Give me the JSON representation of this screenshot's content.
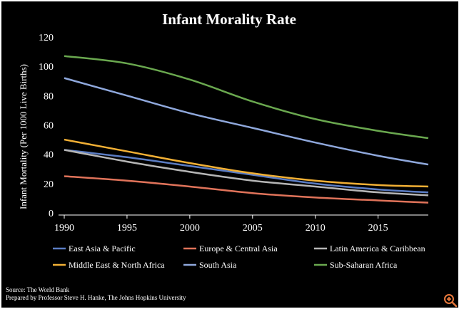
{
  "chart_data": {
    "type": "line",
    "title": "Infant Morality Rate",
    "ylabel": "Infant Mortality (Per 1000 Live Births)",
    "xlabel": "",
    "xlim": [
      1990,
      2019
    ],
    "ylim": [
      0,
      120
    ],
    "x_ticks": [
      "1990",
      "1995",
      "2000",
      "2005",
      "2010",
      "2015"
    ],
    "y_ticks": [
      "0",
      "20",
      "40",
      "60",
      "80",
      "100",
      "120"
    ],
    "x": [
      1990,
      1995,
      2000,
      2005,
      2010,
      2015,
      2019
    ],
    "series": [
      {
        "name": "East Asia & Pacific",
        "color": "#5b7dc4",
        "values": [
          43,
          38,
          32,
          26,
          20,
          16,
          14
        ]
      },
      {
        "name": "Europe & Central Asia",
        "color": "#e0735a",
        "values": [
          25,
          22,
          18,
          13.5,
          10.5,
          8.5,
          7
        ]
      },
      {
        "name": "Latin America & Caribbean",
        "color": "#b6b6b6",
        "values": [
          43,
          35,
          28,
          22,
          18,
          14,
          12
        ]
      },
      {
        "name": "Middle East & North Africa",
        "color": "#f2b035",
        "values": [
          50,
          42,
          34,
          27,
          22,
          19,
          18
        ]
      },
      {
        "name": "South Asia",
        "color": "#8fa8dc",
        "values": [
          92,
          80,
          68,
          58,
          48,
          39,
          33
        ]
      },
      {
        "name": "Sub-Saharan Africa",
        "color": "#6aa84f",
        "values": [
          107,
          102,
          91,
          76,
          64,
          56,
          51
        ]
      }
    ],
    "source": "Source: The World Bank",
    "prepared_by": "Prepared by Professor Steve H. Hanke, The Johns Hopkins University"
  },
  "icons": {
    "zoom": "zoom-icon",
    "zoom_color": "#e8783c"
  }
}
